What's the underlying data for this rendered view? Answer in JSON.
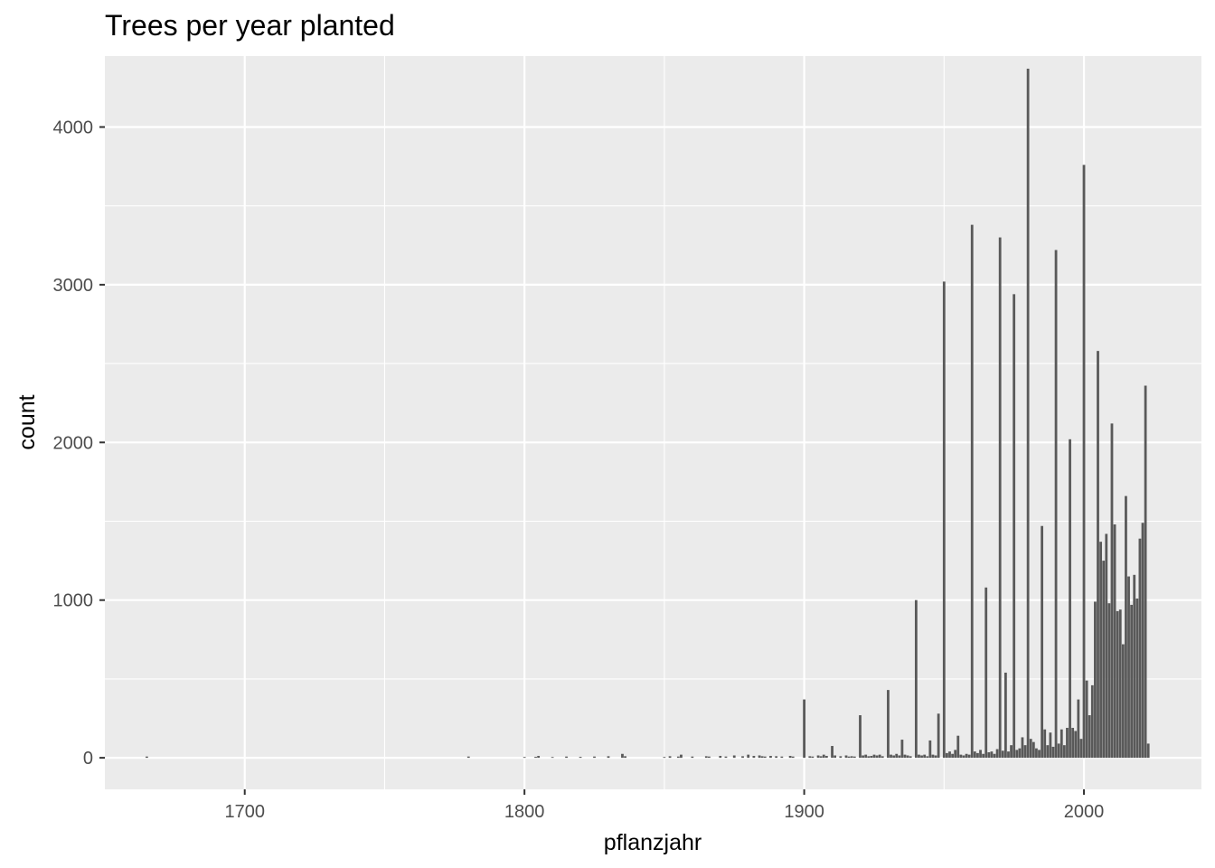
{
  "chart_data": {
    "type": "bar",
    "title": "Trees per year planted",
    "xlabel": "pflanzjahr",
    "ylabel": "count",
    "xlim": [
      1650,
      2042
    ],
    "ylim": [
      -200,
      4450
    ],
    "x_ticks": [
      1700,
      1800,
      1900,
      2000
    ],
    "y_ticks": [
      0,
      1000,
      2000,
      3000,
      4000
    ],
    "grid": true,
    "panel_color": "#EBEBEB",
    "bar_color": "#595959",
    "grid_color": "#FFFFFF",
    "x": [
      1665,
      1780,
      1800,
      1804,
      1805,
      1810,
      1815,
      1820,
      1825,
      1830,
      1835,
      1836,
      1850,
      1852,
      1855,
      1856,
      1860,
      1865,
      1866,
      1870,
      1872,
      1875,
      1878,
      1880,
      1882,
      1884,
      1885,
      1886,
      1888,
      1890,
      1892,
      1895,
      1896,
      1900,
      1902,
      1903,
      1905,
      1906,
      1907,
      1908,
      1910,
      1911,
      1913,
      1915,
      1916,
      1917,
      1918,
      1920,
      1921,
      1922,
      1923,
      1924,
      1925,
      1926,
      1927,
      1928,
      1930,
      1931,
      1932,
      1933,
      1934,
      1935,
      1936,
      1937,
      1938,
      1940,
      1941,
      1942,
      1943,
      1944,
      1945,
      1946,
      1947,
      1948,
      1950,
      1951,
      1952,
      1953,
      1954,
      1955,
      1956,
      1957,
      1958,
      1959,
      1960,
      1961,
      1962,
      1963,
      1964,
      1965,
      1966,
      1967,
      1968,
      1969,
      1970,
      1971,
      1972,
      1973,
      1974,
      1975,
      1976,
      1977,
      1978,
      1979,
      1980,
      1981,
      1982,
      1983,
      1984,
      1985,
      1986,
      1987,
      1988,
      1989,
      1990,
      1991,
      1992,
      1993,
      1994,
      1995,
      1996,
      1997,
      1998,
      1999,
      2000,
      2001,
      2002,
      2003,
      2004,
      2005,
      2006,
      2007,
      2008,
      2009,
      2010,
      2011,
      2012,
      2013,
      2014,
      2015,
      2016,
      2017,
      2018,
      2019,
      2020,
      2021,
      2022,
      2023
    ],
    "values": [
      8,
      8,
      5,
      6,
      12,
      5,
      8,
      6,
      8,
      10,
      25,
      10,
      5,
      10,
      8,
      20,
      8,
      10,
      8,
      12,
      8,
      15,
      10,
      20,
      12,
      15,
      10,
      8,
      12,
      10,
      8,
      12,
      8,
      370,
      10,
      8,
      15,
      10,
      20,
      12,
      75,
      15,
      10,
      15,
      8,
      10,
      8,
      270,
      15,
      20,
      10,
      12,
      20,
      15,
      20,
      10,
      430,
      20,
      15,
      25,
      15,
      115,
      20,
      15,
      10,
      1000,
      20,
      15,
      20,
      10,
      110,
      20,
      15,
      280,
      3020,
      30,
      40,
      25,
      50,
      140,
      20,
      15,
      25,
      20,
      3380,
      40,
      30,
      50,
      25,
      1080,
      35,
      40,
      25,
      55,
      3300,
      45,
      540,
      40,
      80,
      2940,
      50,
      60,
      130,
      80,
      4370,
      120,
      100,
      60,
      50,
      1470,
      180,
      80,
      160,
      70,
      3220,
      90,
      180,
      80,
      190,
      2020,
      190,
      170,
      370,
      120,
      3760,
      490,
      270,
      460,
      990,
      2580,
      1370,
      1250,
      1420,
      980,
      2120,
      1480,
      930,
      940,
      720,
      1660,
      1150,
      970,
      1160,
      1010,
      1390,
      1490,
      2360,
      90
    ]
  }
}
